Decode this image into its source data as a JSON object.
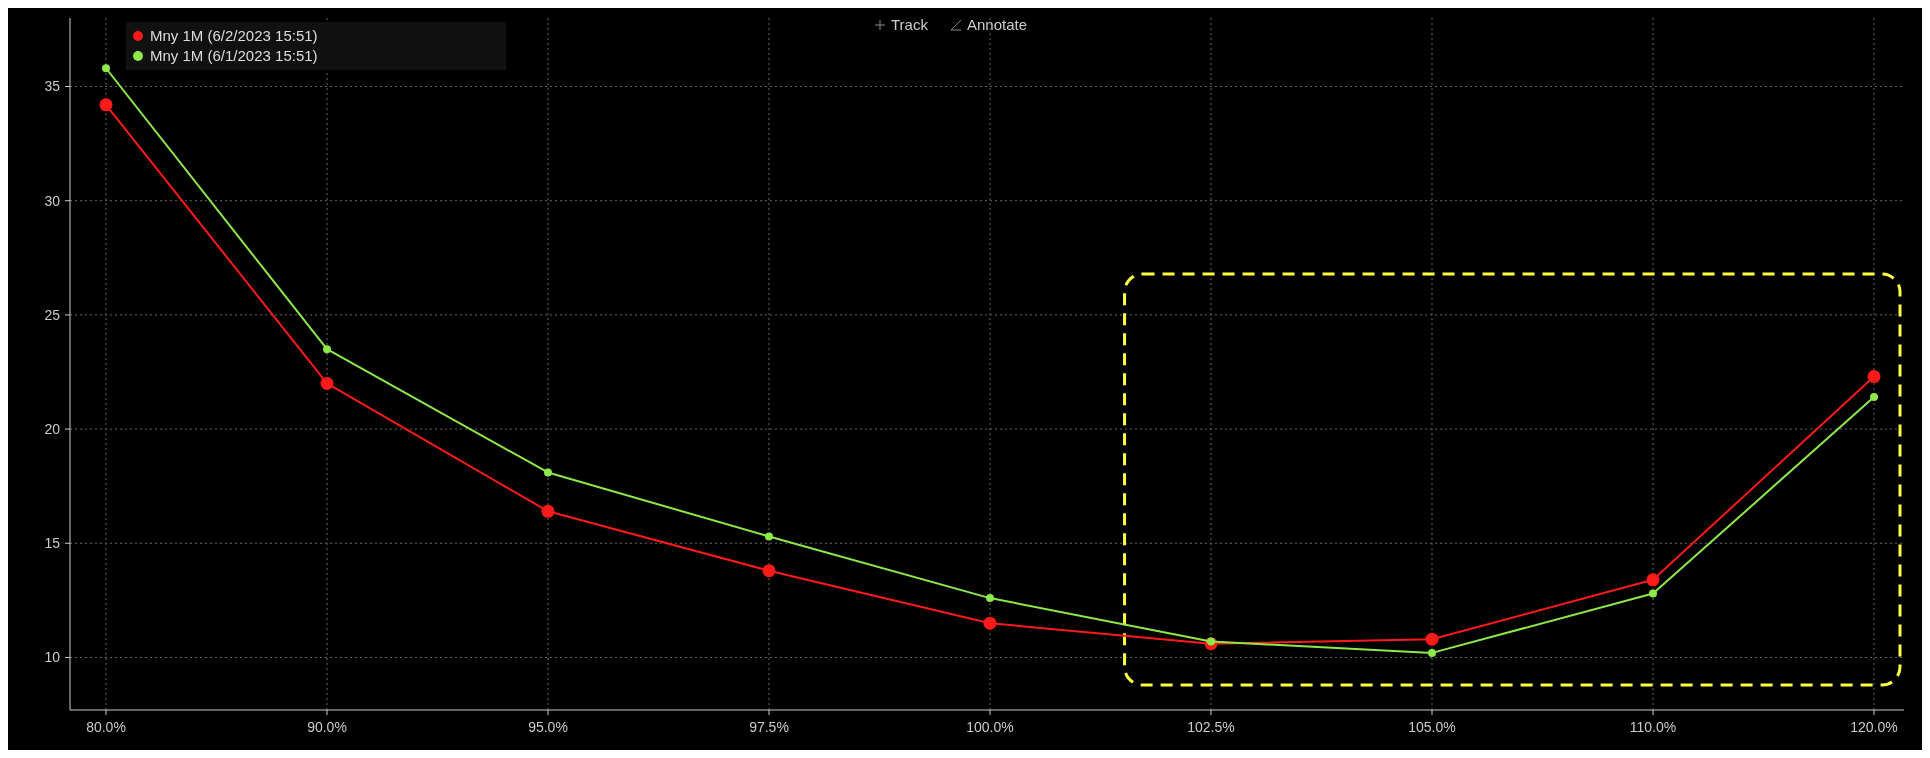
{
  "chart_data": {
    "type": "line",
    "categories": [
      "80.0%",
      "90.0%",
      "95.0%",
      "97.5%",
      "100.0%",
      "102.5%",
      "105.0%",
      "110.0%",
      "120.0%"
    ],
    "series": [
      {
        "name": "Mny 1M (6/2/2023 15:51)",
        "color": "#ff1a1a",
        "values": [
          34.2,
          22.0,
          16.4,
          13.8,
          11.5,
          10.6,
          10.8,
          13.4,
          22.3
        ]
      },
      {
        "name": "Mny 1M (6/1/2023 15:51)",
        "color": "#8ee84a",
        "values": [
          35.8,
          23.5,
          18.1,
          15.3,
          12.6,
          10.7,
          10.2,
          12.8,
          21.4
        ]
      }
    ],
    "ylim": [
      7.7,
      38
    ],
    "yticks": [
      10,
      15,
      20,
      25,
      30,
      35
    ],
    "grid": true,
    "legend": "top left",
    "marker": "circle",
    "line_style": "solid",
    "annotations": [
      "Track",
      "Annotate"
    ]
  }
}
